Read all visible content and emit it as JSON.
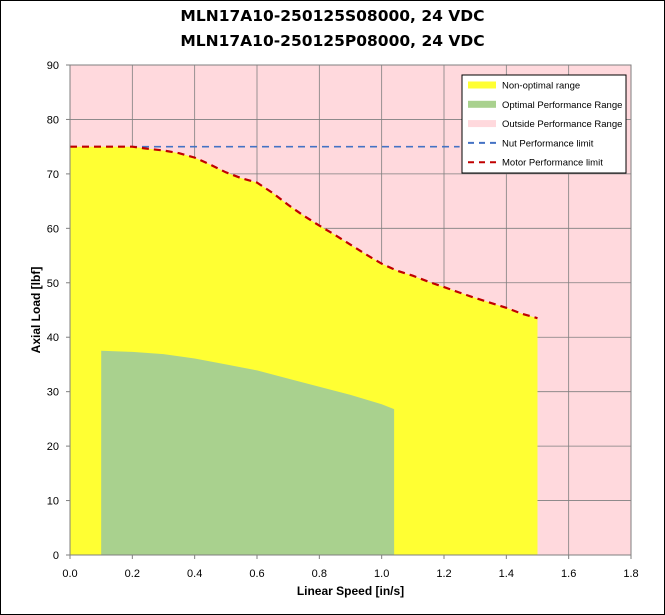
{
  "chart_data": {
    "type": "area",
    "title_lines": [
      "MLN17A10-250125S08000, 24 VDC",
      "MLN17A10-250125P08000, 24 VDC"
    ],
    "xlabel": "Linear Speed [in/s]",
    "ylabel": "Axial Load [lbf]",
    "xlim": [
      0,
      1.8
    ],
    "ylim": [
      0,
      90
    ],
    "x_ticks": [
      "0.0",
      "0.2",
      "0.4",
      "0.6",
      "0.8",
      "1.0",
      "1.2",
      "1.4",
      "1.6",
      "1.8"
    ],
    "y_ticks": [
      "0",
      "10",
      "20",
      "30",
      "40",
      "50",
      "60",
      "70",
      "80",
      "90"
    ],
    "grid": true,
    "legend_position": "top-right",
    "legend": [
      {
        "label": "Non-optimal range",
        "kind": "fill",
        "color": "#FFFF33"
      },
      {
        "label": "Optimal Performance Range",
        "kind": "fill",
        "color": "#A9D18E"
      },
      {
        "label": "Outside Performance Range",
        "kind": "fill",
        "color": "#FFD9DD"
      },
      {
        "label": "Nut Performance limit",
        "kind": "dash",
        "color": "#4472C4"
      },
      {
        "label": "Motor Performance limit",
        "kind": "dash",
        "color": "#C00000"
      }
    ],
    "colors": {
      "outside_background": "#FFD9DD",
      "non_optimal": "#FFFF33",
      "optimal": "#A9D18E",
      "nut_limit": "#4472C4",
      "motor_limit": "#C00000",
      "grid": "#7F7F7F"
    },
    "series": [
      {
        "name": "Motor Performance limit",
        "x": [
          0,
          0.1,
          0.2,
          0.25,
          0.3,
          0.35,
          0.4,
          0.45,
          0.5,
          0.55,
          0.6,
          0.65,
          0.7,
          0.75,
          0.8,
          0.85,
          0.9,
          0.95,
          1.0,
          1.05,
          1.1,
          1.15,
          1.2,
          1.25,
          1.3,
          1.35,
          1.4,
          1.45,
          1.5
        ],
        "y": [
          75,
          75,
          75,
          74.6,
          74.3,
          73.8,
          73,
          71.7,
          70.3,
          69.2,
          68.4,
          66.5,
          64.3,
          62.3,
          60.5,
          58.8,
          57,
          55.2,
          53.5,
          52.2,
          51.3,
          50.2,
          49.2,
          48.2,
          47.2,
          46.3,
          45.4,
          44.3,
          43.5
        ]
      },
      {
        "name": "Nut Performance limit",
        "x": [
          0,
          1.25
        ],
        "y": [
          75,
          75
        ]
      },
      {
        "name": "Optimal Performance Range",
        "x": [
          0.1,
          0.2,
          0.3,
          0.4,
          0.5,
          0.6,
          0.7,
          0.8,
          0.9,
          1.0,
          1.04
        ],
        "y": [
          37.5,
          37.3,
          36.9,
          36.1,
          35,
          33.9,
          32.4,
          30.9,
          29.4,
          27.7,
          26.8
        ]
      }
    ]
  }
}
